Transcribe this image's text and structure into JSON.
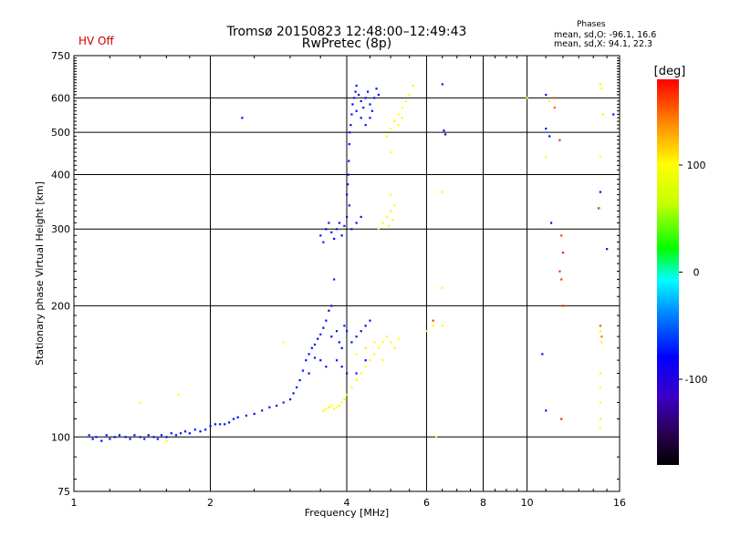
{
  "header": {
    "title": "Tromsø 20150823 12:48:00–12:49:43",
    "subtitle": "RwPretec (8p)",
    "hv_status": "HV Off",
    "hv_color": "#cc0000"
  },
  "phases": {
    "title": "Phases",
    "o_stats": "mean, sd,O: -96.1, 16.6",
    "x_stats": "mean, sd,X:  94.1, 22.3"
  },
  "colorbar": {
    "label": "[deg]",
    "range": [
      -180,
      180
    ],
    "ticks": [
      {
        "value": 100,
        "label": "100"
      },
      {
        "value": 0,
        "label": "0"
      },
      {
        "value": -100,
        "label": "-100"
      }
    ]
  },
  "chart_data": {
    "type": "scatter",
    "title": "Tromsø 20150823 12:48:00–12:49:43",
    "subtitle": "RwPretec (8p)",
    "xlabel": "Frequency [MHz]",
    "ylabel": "Stationary phase Virtual Height [km]",
    "x_scale": "log",
    "y_scale": "log",
    "xlim": [
      1,
      16
    ],
    "ylim": [
      75,
      750
    ],
    "x_ticks": [
      {
        "value": 1,
        "label": "1"
      },
      {
        "value": 2,
        "label": "2"
      },
      {
        "value": 4,
        "label": "4"
      },
      {
        "value": 6,
        "label": "6"
      },
      {
        "value": 8,
        "label": "8"
      },
      {
        "value": 10,
        "label": "10"
      },
      {
        "value": 16,
        "label": "16"
      }
    ],
    "y_ticks": [
      {
        "value": 75,
        "label": "75"
      },
      {
        "value": 100,
        "label": "100"
      },
      {
        "value": 200,
        "label": "200"
      },
      {
        "value": 300,
        "label": "300"
      },
      {
        "value": 400,
        "label": "400"
      },
      {
        "value": 500,
        "label": "500"
      },
      {
        "value": 600,
        "label": "600"
      },
      {
        "value": 750,
        "label": "750"
      }
    ],
    "grid": true,
    "color_by": "phase (deg)",
    "series": [
      {
        "mode": "O",
        "points": [
          [
            1.08,
            101,
            -90
          ],
          [
            1.1,
            99,
            -100
          ],
          [
            1.12,
            100,
            -95
          ],
          [
            1.15,
            98,
            -105
          ],
          [
            1.18,
            101,
            -92
          ],
          [
            1.2,
            99,
            -98
          ],
          [
            1.23,
            100,
            -100
          ],
          [
            1.26,
            101,
            -94
          ],
          [
            1.3,
            100,
            -97
          ],
          [
            1.33,
            99,
            -102
          ],
          [
            1.36,
            101,
            -95
          ],
          [
            1.4,
            100,
            -99
          ],
          [
            1.43,
            99,
            -93
          ],
          [
            1.46,
            101,
            -101
          ],
          [
            1.5,
            100,
            -96
          ],
          [
            1.53,
            99,
            -98
          ],
          [
            1.56,
            101,
            -94
          ],
          [
            1.6,
            100,
            -100
          ],
          [
            1.64,
            102,
            -97
          ],
          [
            1.68,
            101,
            -95
          ],
          [
            1.72,
            102,
            -99
          ],
          [
            1.76,
            103,
            -96
          ],
          [
            1.8,
            102,
            -100
          ],
          [
            1.85,
            104,
            -94
          ],
          [
            1.9,
            103,
            -98
          ],
          [
            1.95,
            104,
            -95
          ],
          [
            2.0,
            106,
            -97
          ],
          [
            2.05,
            107,
            -99
          ],
          [
            2.1,
            107,
            -93
          ],
          [
            2.15,
            107,
            -96
          ],
          [
            2.2,
            108,
            -98
          ],
          [
            2.25,
            110,
            -95
          ],
          [
            2.3,
            111,
            -100
          ],
          [
            2.4,
            112,
            -94
          ],
          [
            2.5,
            113,
            -97
          ],
          [
            2.6,
            115,
            -95
          ],
          [
            2.7,
            117,
            -99
          ],
          [
            2.8,
            118,
            -96
          ],
          [
            2.9,
            120,
            -93
          ],
          [
            3.0,
            122,
            -98
          ],
          [
            3.05,
            126,
            -95
          ],
          [
            3.1,
            130,
            -97
          ],
          [
            3.15,
            135,
            -100
          ],
          [
            3.2,
            142,
            -94
          ],
          [
            3.25,
            150,
            -96
          ],
          [
            3.3,
            155,
            -98
          ],
          [
            3.35,
            160,
            -95
          ],
          [
            3.4,
            163,
            -99
          ],
          [
            3.45,
            168,
            -97
          ],
          [
            3.5,
            172,
            -94
          ],
          [
            3.55,
            178,
            -98
          ],
          [
            3.6,
            185,
            -96
          ],
          [
            3.65,
            195,
            -100
          ],
          [
            3.7,
            200,
            -95
          ],
          [
            3.75,
            230,
            -92
          ],
          [
            3.3,
            140,
            -97
          ],
          [
            3.4,
            152,
            -95
          ],
          [
            3.5,
            150,
            -99
          ],
          [
            3.6,
            145,
            -96
          ],
          [
            3.7,
            170,
            -98
          ],
          [
            3.8,
            175,
            -95
          ],
          [
            3.85,
            165,
            -97
          ],
          [
            3.9,
            160,
            -100
          ],
          [
            3.95,
            180,
            -96
          ],
          [
            4.0,
            175,
            -94
          ],
          [
            4.1,
            165,
            -98
          ],
          [
            4.2,
            170,
            -95
          ],
          [
            4.3,
            175,
            -97
          ],
          [
            4.4,
            180,
            -99
          ],
          [
            4.5,
            185,
            -96
          ],
          [
            3.8,
            150,
            -95
          ],
          [
            3.9,
            145,
            -98
          ],
          [
            4.0,
            140,
            -96
          ],
          [
            4.2,
            140,
            -94
          ],
          [
            4.4,
            150,
            -99
          ],
          [
            3.5,
            290,
            -96
          ],
          [
            3.55,
            280,
            -94
          ],
          [
            3.6,
            300,
            -98
          ],
          [
            3.65,
            310,
            -95
          ],
          [
            3.7,
            295,
            -97
          ],
          [
            3.75,
            285,
            -100
          ],
          [
            3.8,
            300,
            -93
          ],
          [
            3.85,
            310,
            -96
          ],
          [
            3.9,
            290,
            -98
          ],
          [
            3.95,
            305,
            -95
          ],
          [
            4.0,
            320,
            -97
          ],
          [
            4.05,
            340,
            -94
          ],
          [
            4.0,
            360,
            -99
          ],
          [
            4.02,
            380,
            -96
          ],
          [
            4.03,
            400,
            -98
          ],
          [
            4.04,
            430,
            -95
          ],
          [
            4.05,
            470,
            -97
          ],
          [
            4.06,
            500,
            -94
          ],
          [
            4.08,
            520,
            -99
          ],
          [
            4.1,
            550,
            -96
          ],
          [
            4.12,
            580,
            -98
          ],
          [
            4.15,
            600,
            -95
          ],
          [
            4.18,
            620,
            -97
          ],
          [
            4.2,
            640,
            -94
          ],
          [
            4.25,
            610,
            -96
          ],
          [
            4.3,
            590,
            -99
          ],
          [
            4.35,
            570,
            -95
          ],
          [
            4.4,
            600,
            -97
          ],
          [
            4.45,
            620,
            -94
          ],
          [
            4.5,
            580,
            -98
          ],
          [
            4.55,
            560,
            -96
          ],
          [
            4.6,
            600,
            -95
          ],
          [
            4.65,
            630,
            -97
          ],
          [
            4.7,
            610,
            -99
          ],
          [
            4.2,
            560,
            -96
          ],
          [
            4.3,
            540,
            -98
          ],
          [
            4.4,
            520,
            -95
          ],
          [
            4.5,
            540,
            -97
          ],
          [
            4.1,
            300,
            -96
          ],
          [
            4.2,
            310,
            -98
          ],
          [
            4.3,
            320,
            -95
          ],
          [
            2.35,
            540,
            -96
          ],
          [
            6.5,
            645,
            -94
          ],
          [
            6.55,
            505,
            -98
          ],
          [
            6.6,
            495,
            -100
          ],
          [
            11.0,
            610,
            -96
          ],
          [
            11.2,
            490,
            -98
          ],
          [
            11.0,
            510,
            -95
          ],
          [
            11.3,
            310,
            -96
          ],
          [
            10.8,
            155,
            -98
          ],
          [
            11.0,
            115,
            -95
          ],
          [
            14.5,
            365,
            -97
          ],
          [
            14.4,
            335,
            -94
          ],
          [
            15.0,
            270,
            -96
          ],
          [
            15.5,
            550,
            -98
          ]
        ]
      },
      {
        "mode": "X",
        "points": [
          [
            3.55,
            115,
            95
          ],
          [
            3.6,
            116,
            90
          ],
          [
            3.65,
            117,
            98
          ],
          [
            3.7,
            118,
            94
          ],
          [
            3.75,
            116,
            96
          ],
          [
            3.8,
            117,
            92
          ],
          [
            3.85,
            118,
            97
          ],
          [
            3.9,
            120,
            95
          ],
          [
            3.95,
            122,
            99
          ],
          [
            4.0,
            125,
            94
          ],
          [
            4.1,
            130,
            96
          ],
          [
            4.2,
            135,
            98
          ],
          [
            4.3,
            140,
            93
          ],
          [
            4.4,
            145,
            95
          ],
          [
            4.5,
            150,
            97
          ],
          [
            4.6,
            155,
            92
          ],
          [
            4.7,
            160,
            96
          ],
          [
            4.8,
            165,
            94
          ],
          [
            4.9,
            170,
            98
          ],
          [
            5.0,
            165,
            95
          ],
          [
            5.1,
            160,
            97
          ],
          [
            5.2,
            168,
            93
          ],
          [
            4.2,
            155,
            96
          ],
          [
            4.4,
            160,
            99
          ],
          [
            4.6,
            165,
            94
          ],
          [
            4.8,
            150,
            96
          ],
          [
            4.7,
            300,
            95
          ],
          [
            4.8,
            310,
            98
          ],
          [
            4.9,
            320,
            93
          ],
          [
            5.0,
            330,
            97
          ],
          [
            5.1,
            340,
            94
          ],
          [
            5.0,
            360,
            96
          ],
          [
            4.95,
            305,
            95
          ],
          [
            5.05,
            315,
            99
          ],
          [
            4.9,
            490,
            96
          ],
          [
            5.0,
            510,
            94
          ],
          [
            5.1,
            530,
            98
          ],
          [
            5.2,
            550,
            95
          ],
          [
            5.3,
            570,
            97
          ],
          [
            5.4,
            590,
            93
          ],
          [
            5.5,
            610,
            96
          ],
          [
            5.6,
            640,
            99
          ],
          [
            5.2,
            520,
            95
          ],
          [
            5.3,
            540,
            97
          ],
          [
            5.0,
            450,
            95
          ],
          [
            1.4,
            120,
            95
          ],
          [
            1.6,
            98,
            97
          ],
          [
            1.7,
            125,
            96
          ],
          [
            2.9,
            165,
            94
          ],
          [
            6.0,
            175,
            98
          ],
          [
            6.2,
            180,
            95
          ],
          [
            6.5,
            180,
            97
          ],
          [
            6.5,
            220,
            94
          ],
          [
            6.5,
            365,
            96
          ],
          [
            6.3,
            100,
            98
          ],
          [
            10.0,
            600,
            95
          ],
          [
            11.2,
            590,
            97
          ],
          [
            11.5,
            570,
            94
          ],
          [
            11.0,
            440,
            96
          ],
          [
            14.5,
            645,
            98
          ],
          [
            14.6,
            630,
            95
          ],
          [
            14.7,
            550,
            97
          ],
          [
            14.5,
            440,
            94
          ],
          [
            14.5,
            335,
            96
          ],
          [
            14.5,
            175,
            98
          ],
          [
            14.6,
            165,
            95
          ],
          [
            14.5,
            140,
            97
          ],
          [
            14.5,
            130,
            94
          ],
          [
            14.5,
            120,
            96
          ],
          [
            14.5,
            110,
            98
          ],
          [
            14.5,
            105,
            95
          ]
        ]
      },
      {
        "mode": "other",
        "points": [
          [
            11.8,
            480,
            165
          ],
          [
            11.5,
            600,
            150
          ],
          [
            11.9,
            290,
            160
          ],
          [
            12.0,
            265,
            170
          ],
          [
            11.8,
            240,
            165
          ],
          [
            11.9,
            230,
            158
          ],
          [
            12.0,
            200,
            162
          ],
          [
            11.5,
            570,
            145
          ],
          [
            11.9,
            110,
            168
          ],
          [
            14.5,
            180,
            150
          ],
          [
            14.6,
            170,
            140
          ],
          [
            6.2,
            185,
            160
          ]
        ]
      }
    ]
  }
}
